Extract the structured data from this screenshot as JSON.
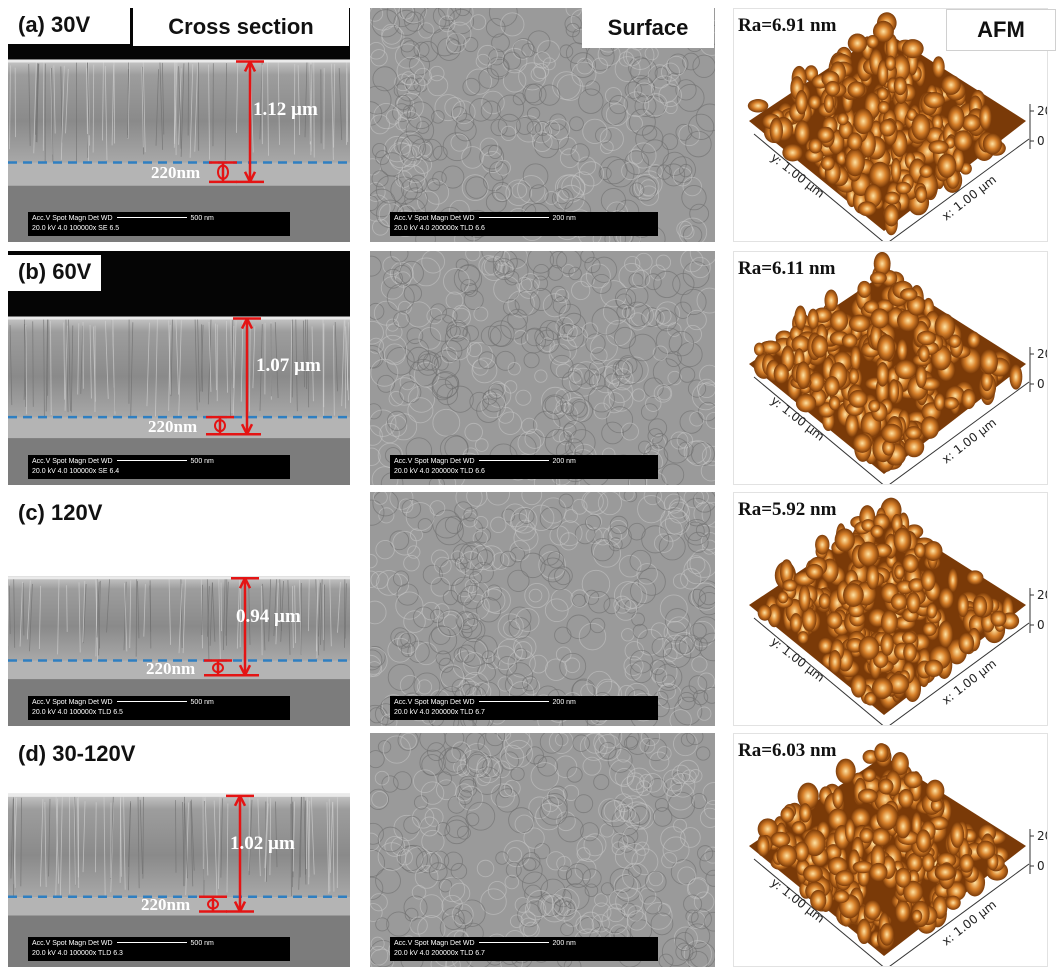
{
  "headers": {
    "cross_section": "Cross section",
    "surface": "Surface",
    "afm": "AFM"
  },
  "rows": [
    {
      "label": "(a) 30V",
      "thickness": "1.12 µm",
      "base_thickness": "220nm",
      "ra": "Ra=6.91 nm",
      "sem_info": {
        "line1": "Acc.V  Spot Magn   Det  WD",
        "scale": "500 nm",
        "line2": "20.0 kV 4.0   100000x SE  6.5"
      },
      "surface_info": {
        "line1": "Acc.V  Spot Magn   Det  WD",
        "scale": "200 nm",
        "line2": "20.0 kV 4.0   200000x TLD 6.6"
      },
      "afm_axes": {
        "z_top": "20",
        "z_bottom": "0",
        "y_label": "y: 1.00 µm",
        "x_label": "x: 1.00 µm"
      }
    },
    {
      "label": "(b) 60V",
      "thickness": "1.07 µm",
      "base_thickness": "220nm",
      "ra": "Ra=6.11 nm",
      "sem_info": {
        "line1": "Acc.V  Spot Magn   Det  WD",
        "scale": "500 nm",
        "line2": "20.0 kV 4.0   100000x SE  6.4"
      },
      "surface_info": {
        "line1": "Acc.V  Spot Magn   Det  WD",
        "scale": "200 nm",
        "line2": "20.0 kV 4.0   200000x TLD 6.6"
      },
      "afm_axes": {
        "z_top": "20",
        "z_bottom": "0",
        "y_label": "y: 1.00 µm",
        "x_label": "x: 1.00 µm"
      }
    },
    {
      "label": "(c) 120V",
      "thickness": "0.94 µm",
      "base_thickness": "220nm",
      "ra": "Ra=5.92 nm",
      "sem_info": {
        "line1": "Acc.V  Spot Magn   Det  WD",
        "scale": "500 nm",
        "line2": "20.0 kV 4.0   100000x TLD 6.5"
      },
      "surface_info": {
        "line1": "Acc.V  Spot Magn   Det  WD",
        "scale": "200 nm",
        "line2": "20.0 kV 4.0   200000x TLD 6.7"
      },
      "afm_axes": {
        "z_top": "20",
        "z_bottom": "0",
        "y_label": "y: 1.00 µm",
        "x_label": "x: 1.00 µm"
      }
    },
    {
      "label": "(d) 30-120V",
      "thickness": "1.02 µm",
      "base_thickness": "220nm",
      "ra": "Ra=6.03 nm",
      "sem_info": {
        "line1": "Acc.V  Spot Magn   Det  WD",
        "scale": "500 nm",
        "line2": "20.0 kV 4.0   100000x TLD 6.3"
      },
      "surface_info": {
        "line1": "Acc.V  Spot Magn   Det  WD",
        "scale": "200 nm",
        "line2": "20.0 kV 4.0   200000x TLD 6.7"
      },
      "afm_axes": {
        "z_top": "20",
        "z_bottom": "0",
        "y_label": "y: 1.00 µm",
        "x_label": "x: 1.00 µm"
      }
    }
  ],
  "colors": {
    "arrow": "#e41414",
    "interface_line": "#2f7fc1",
    "afm_dark": "#7a3a08",
    "afm_mid": "#d9822b",
    "afm_light": "#ffe3a3"
  }
}
